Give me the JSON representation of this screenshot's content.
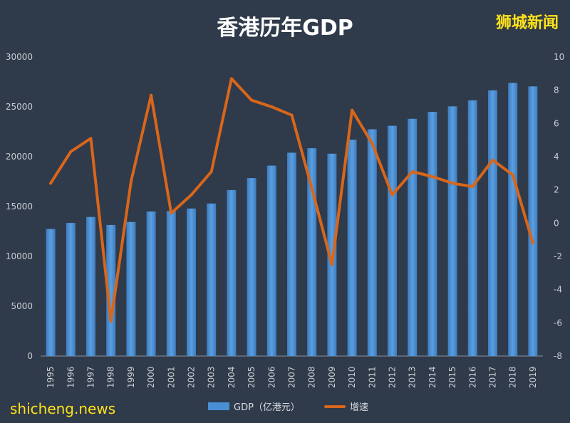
{
  "header": {
    "title": "香港历年GDP",
    "brand": "狮城新闻"
  },
  "watermark": "shicheng.news",
  "colors": {
    "background": "#2f3a4a",
    "bar": "#4a8fd4",
    "line": "#d8661b",
    "tick_text": "#c9cdd4"
  },
  "chart_data": {
    "type": "bar",
    "title": "香港历年GDP",
    "categories": [
      "1995",
      "1996",
      "1997",
      "1998",
      "1999",
      "2000",
      "2001",
      "2002",
      "2003",
      "2004",
      "2005",
      "2006",
      "2007",
      "2008",
      "2009",
      "2010",
      "2011",
      "2012",
      "2013",
      "2014",
      "2015",
      "2016",
      "2017",
      "2018",
      "2019"
    ],
    "series": [
      {
        "name": "GDP（亿港元）",
        "type": "bar",
        "axis": "left",
        "values": [
          12750,
          13350,
          13950,
          13150,
          13450,
          14500,
          14550,
          14800,
          15300,
          16650,
          17850,
          19100,
          20400,
          20850,
          20300,
          21700,
          22750,
          23100,
          23800,
          24500,
          25050,
          25650,
          26650,
          27400,
          27050
        ]
      },
      {
        "name": "增速",
        "type": "line",
        "axis": "right",
        "values": [
          2.4,
          4.3,
          5.1,
          -5.9,
          2.5,
          7.7,
          0.6,
          1.7,
          3.1,
          8.7,
          7.4,
          7.0,
          6.5,
          2.1,
          -2.5,
          6.8,
          4.8,
          1.7,
          3.1,
          2.8,
          2.4,
          2.2,
          3.8,
          2.9,
          -1.2
        ]
      }
    ],
    "y_left": {
      "ylim": [
        0,
        30000
      ],
      "ticks": [
        0,
        5000,
        10000,
        15000,
        20000,
        25000,
        30000
      ]
    },
    "y_right": {
      "ylim": [
        -8,
        10
      ],
      "ticks": [
        -8,
        -6,
        -4,
        -2,
        0,
        2,
        4,
        6,
        8,
        10
      ]
    },
    "grid": false,
    "legend": "bottom-center"
  }
}
